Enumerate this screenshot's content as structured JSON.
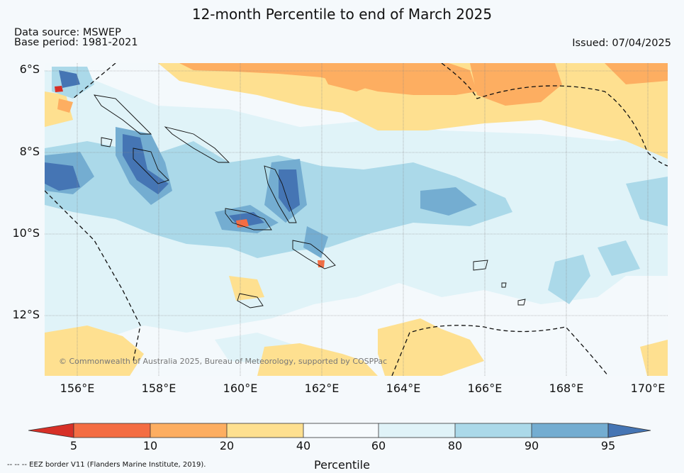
{
  "header": {
    "title": "12-month Percentile to end of March 2025",
    "data_source": "Data source: MSWEP",
    "base_period": "Base period: 1981-2021",
    "issued": "Issued: 07/04/2025"
  },
  "map": {
    "lat_labels": [
      "6°S",
      "8°S",
      "10°S",
      "12°S"
    ],
    "lon_labels": [
      "156°E",
      "158°E",
      "160°E",
      "162°E",
      "164°E",
      "166°E",
      "168°E",
      "170°E"
    ],
    "copyright": "© Commonwealth of Australia 2025, Bureau of Meteorology, supported by COSPPac"
  },
  "colorbar": {
    "ticks": [
      "5",
      "10",
      "20",
      "40",
      "60",
      "80",
      "90",
      "95"
    ],
    "label": "Percentile",
    "colors": {
      "below_5": "#d73027",
      "5_10": "#f46d43",
      "10_20": "#fdae61",
      "20_40": "#fee090",
      "40_60": "#f7fbfd",
      "60_80": "#e0f3f8",
      "80_90": "#abd9e9",
      "90_95": "#74add1",
      "above_95": "#4575b4"
    }
  },
  "footer": {
    "eez_note": "--  --  -- EEZ border V11 (Flanders Marine Institute, 2019)."
  }
}
